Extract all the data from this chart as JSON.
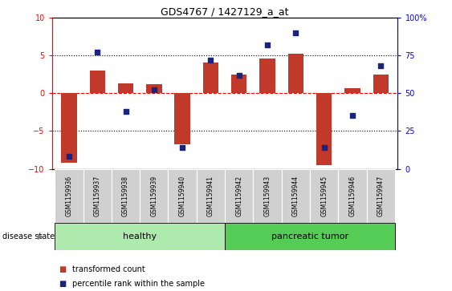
{
  "title": "GDS4767 / 1427129_a_at",
  "samples": [
    "GSM1159936",
    "GSM1159937",
    "GSM1159938",
    "GSM1159939",
    "GSM1159940",
    "GSM1159941",
    "GSM1159942",
    "GSM1159943",
    "GSM1159944",
    "GSM1159945",
    "GSM1159946",
    "GSM1159947"
  ],
  "transformed_count": [
    -9.2,
    3.0,
    1.3,
    1.2,
    -6.8,
    4.0,
    2.5,
    4.6,
    5.2,
    -9.5,
    0.6,
    2.5
  ],
  "percentile_rank": [
    8,
    77,
    38,
    52,
    14,
    72,
    62,
    82,
    90,
    14,
    35,
    68
  ],
  "ylim_left": [
    -10,
    10
  ],
  "ylim_right": [
    0,
    100
  ],
  "yticks_left": [
    -10,
    -5,
    0,
    5,
    10
  ],
  "yticks_right": [
    0,
    25,
    50,
    75,
    100
  ],
  "ytick_labels_right": [
    "0",
    "25",
    "50",
    "75",
    "100%"
  ],
  "bar_color": "#c0392b",
  "dot_color": "#1a237e",
  "healthy_label": "healthy",
  "tumor_label": "pancreatic tumor",
  "healthy_count": 6,
  "tumor_count": 6,
  "disease_state_label": "disease state",
  "legend_bar": "transformed count",
  "legend_dot": "percentile rank within the sample",
  "healthy_color": "#aeeaae",
  "tumor_color": "#55cc55",
  "tick_area_color": "#d0d0d0",
  "bg_color": "#ffffff"
}
